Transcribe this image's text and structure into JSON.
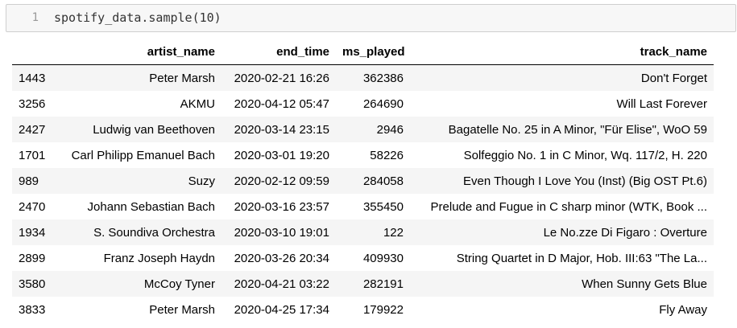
{
  "code_cell": {
    "line_number": "1",
    "code": "spotify_data.sample(10)"
  },
  "table": {
    "columns": [
      "",
      "artist_name",
      "end_time",
      "ms_played",
      "track_name"
    ],
    "rows": [
      {
        "index": "1443",
        "artist_name": "Peter Marsh",
        "end_time": "2020-02-21 16:26",
        "ms_played": "362386",
        "track_name": "Don't Forget"
      },
      {
        "index": "3256",
        "artist_name": "AKMU",
        "end_time": "2020-04-12 05:47",
        "ms_played": "264690",
        "track_name": "Will Last Forever"
      },
      {
        "index": "2427",
        "artist_name": "Ludwig van Beethoven",
        "end_time": "2020-03-14 23:15",
        "ms_played": "2946",
        "track_name": "Bagatelle No. 25 in A Minor, \"Für Elise\", WoO 59"
      },
      {
        "index": "1701",
        "artist_name": "Carl Philipp Emanuel Bach",
        "end_time": "2020-03-01 19:20",
        "ms_played": "58226",
        "track_name": "Solfeggio No. 1 in C Minor, Wq. 117/2, H. 220"
      },
      {
        "index": "989",
        "artist_name": "Suzy",
        "end_time": "2020-02-12 09:59",
        "ms_played": "284058",
        "track_name": "Even Though I Love You (Inst) (Big OST Pt.6)"
      },
      {
        "index": "2470",
        "artist_name": "Johann Sebastian Bach",
        "end_time": "2020-03-16 23:57",
        "ms_played": "355450",
        "track_name": "Prelude and Fugue in C sharp minor (WTK, Book ..."
      },
      {
        "index": "1934",
        "artist_name": "S. Soundiva Orchestra",
        "end_time": "2020-03-10 19:01",
        "ms_played": "122",
        "track_name": "Le No.zze Di Figaro : Overture"
      },
      {
        "index": "2899",
        "artist_name": "Franz Joseph Haydn",
        "end_time": "2020-03-26 20:34",
        "ms_played": "409930",
        "track_name": "String Quartet in D Major, Hob. III:63 \"The La..."
      },
      {
        "index": "3580",
        "artist_name": "McCoy Tyner",
        "end_time": "2020-04-21 03:22",
        "ms_played": "282191",
        "track_name": "When Sunny Gets Blue"
      },
      {
        "index": "3833",
        "artist_name": "Peter Marsh",
        "end_time": "2020-04-25 17:34",
        "ms_played": "179922",
        "track_name": "Fly Away"
      }
    ]
  }
}
